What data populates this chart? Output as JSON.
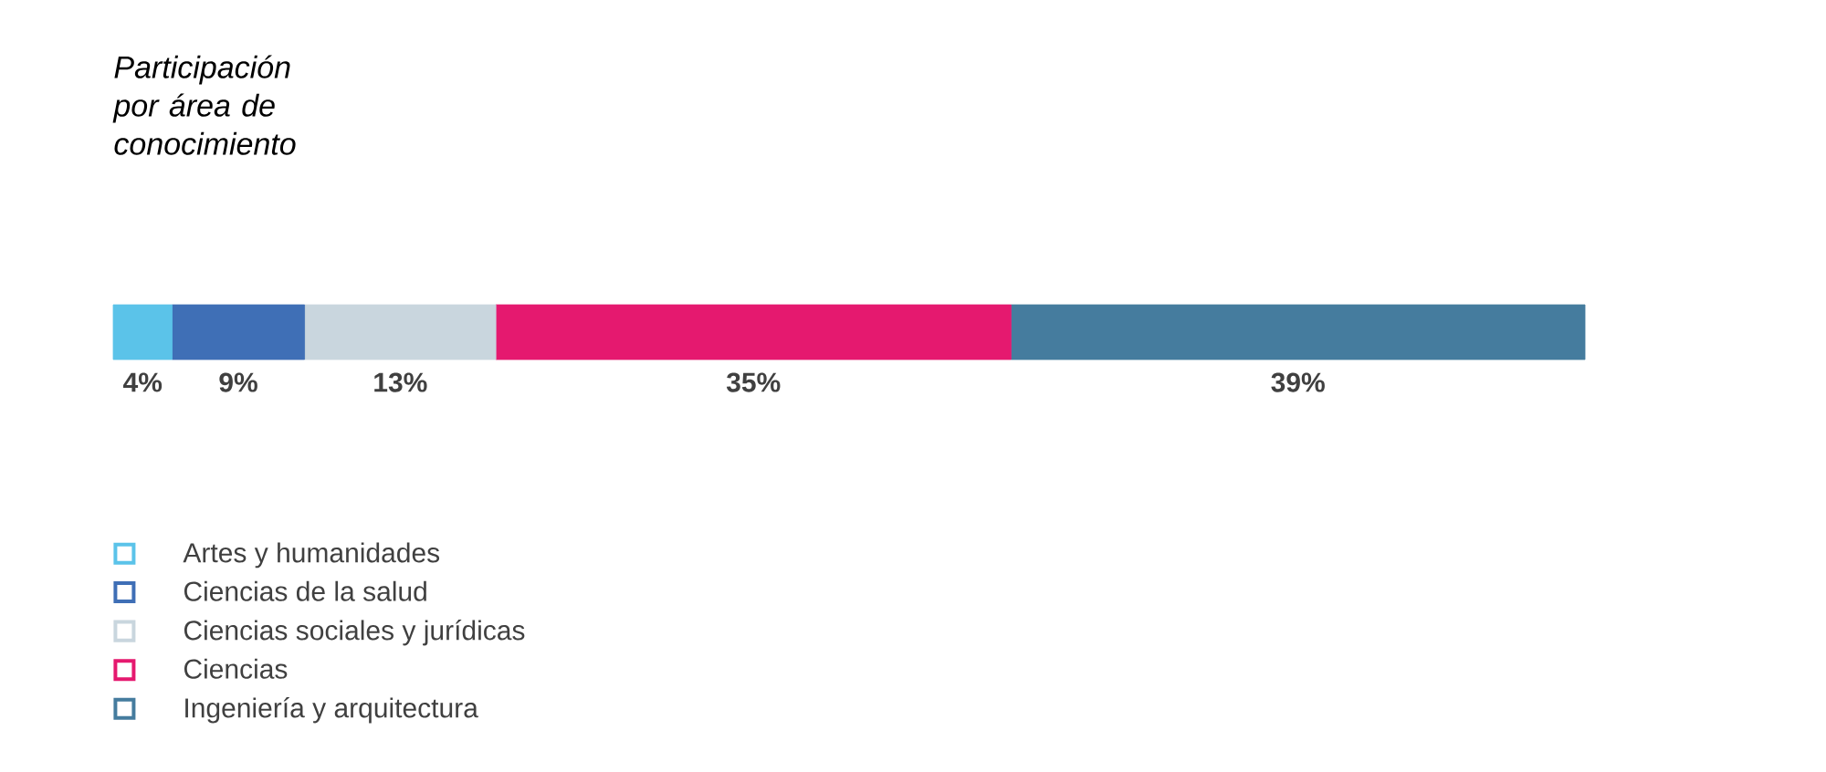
{
  "chart_data": {
    "type": "bar",
    "orientation": "horizontal",
    "stacked": true,
    "title": "Participación por área de conocimiento",
    "categories": [
      null
    ],
    "legend": "bottom",
    "series": [
      {
        "name": "Artes y humanidades",
        "color": "#5bc3e9",
        "values": [
          4
        ],
        "value_labels": [
          "4%"
        ]
      },
      {
        "name": "Ciencias de la salud",
        "color": "#3f6fb6",
        "values": [
          9
        ],
        "value_labels": [
          "9%"
        ]
      },
      {
        "name": "Ciencias sociales y jurídicas",
        "color": "#c9d6de",
        "values": [
          13
        ],
        "value_labels": [
          "13%"
        ]
      },
      {
        "name": "Ciencias",
        "color": "#e5196f",
        "values": [
          35
        ],
        "value_labels": [
          "35%"
        ]
      },
      {
        "name": "Ingeniería y arquitectura",
        "color": "#457c9e",
        "values": [
          39
        ],
        "value_labels": [
          "39%"
        ]
      }
    ]
  }
}
